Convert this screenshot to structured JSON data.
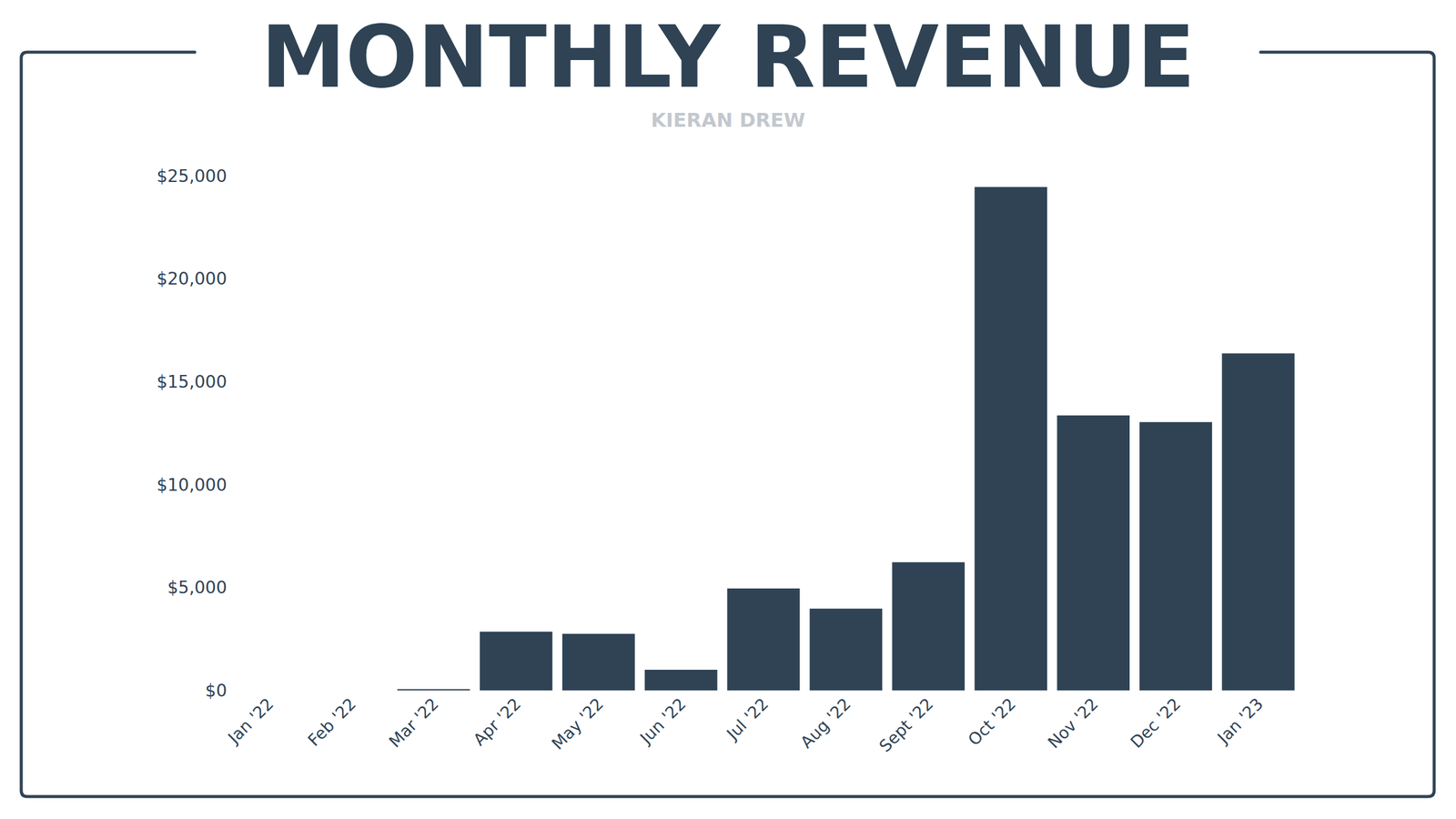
{
  "chart_data": {
    "type": "bar",
    "title": "MONTHLY REVENUE",
    "subtitle": "KIERAN DREW",
    "categories": [
      "Jan '22",
      "Feb '22",
      "Mar '22",
      "Apr '22",
      "May '22",
      "Jun '22",
      "Jul '22",
      "Aug '22",
      "Sept '22",
      "Oct '22",
      "Nov '22",
      "Dec '22",
      "Jan '23"
    ],
    "values": [
      0,
      0,
      50,
      2850,
      2750,
      1000,
      4950,
      3970,
      6230,
      24460,
      13360,
      13040,
      16380
    ],
    "color": "#2f4355",
    "ylim": [
      0,
      25000
    ],
    "yticks": [
      {
        "value": 0,
        "label": "$0"
      },
      {
        "value": 5000,
        "label": "$5,000"
      },
      {
        "value": 10000,
        "label": "$10,000"
      },
      {
        "value": 15000,
        "label": "$15,000"
      },
      {
        "value": 20000,
        "label": "$20,000"
      },
      {
        "value": 25000,
        "label": "$25,000"
      }
    ],
    "grid": false
  }
}
